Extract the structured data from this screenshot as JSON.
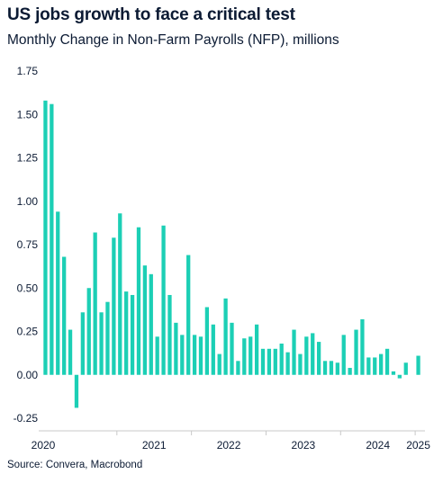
{
  "title": "US jobs growth to face a critical test",
  "subtitle": "Monthly Change in Non-Farm Payrolls (NFP), millions",
  "source": "Source: Convera, Macrobond",
  "colors": {
    "bar": "#1ccfb5",
    "axis": "#c8c8c8",
    "text": "#0b1a33"
  },
  "chart_data": {
    "type": "bar",
    "title": "US jobs growth to face a critical test",
    "subtitle": "Monthly Change in Non-Farm Payrolls (NFP), millions",
    "xlabel": "",
    "ylabel": "",
    "ylim": [
      -0.25,
      1.75
    ],
    "yticks": [
      "1.75",
      "1.50",
      "1.25",
      "1.00",
      "0.75",
      "0.50",
      "0.25",
      "0.00",
      "-0.25"
    ],
    "ytick_values": [
      1.75,
      1.5,
      1.25,
      1.0,
      0.75,
      0.5,
      0.25,
      0.0,
      -0.25
    ],
    "year_labels": [
      "2020",
      "2021",
      "2022",
      "2023",
      "2024",
      "2025"
    ],
    "grid": false,
    "legend": "none",
    "series": [
      {
        "values": [
          1.58,
          1.56,
          0.94,
          0.68,
          0.26,
          -0.19,
          0.36,
          0.5,
          0.82,
          0.36,
          0.42,
          0.79,
          0.93,
          0.48,
          0.46,
          0.85,
          0.63,
          0.58,
          0.22,
          0.86,
          0.46,
          0.3,
          0.23,
          0.69,
          0.23,
          0.22,
          0.39,
          0.29,
          0.12,
          0.44,
          0.3,
          0.08,
          0.21,
          0.22,
          0.29,
          0.15,
          0.15,
          0.15,
          0.18,
          0.13,
          0.26,
          0.12,
          0.22,
          0.24,
          0.19,
          0.08,
          0.08,
          0.07,
          0.23,
          0.04,
          0.26,
          0.32,
          0.1,
          0.1,
          0.12,
          0.15,
          0.02,
          -0.02,
          0.07,
          0.0,
          0.11
        ]
      }
    ]
  }
}
